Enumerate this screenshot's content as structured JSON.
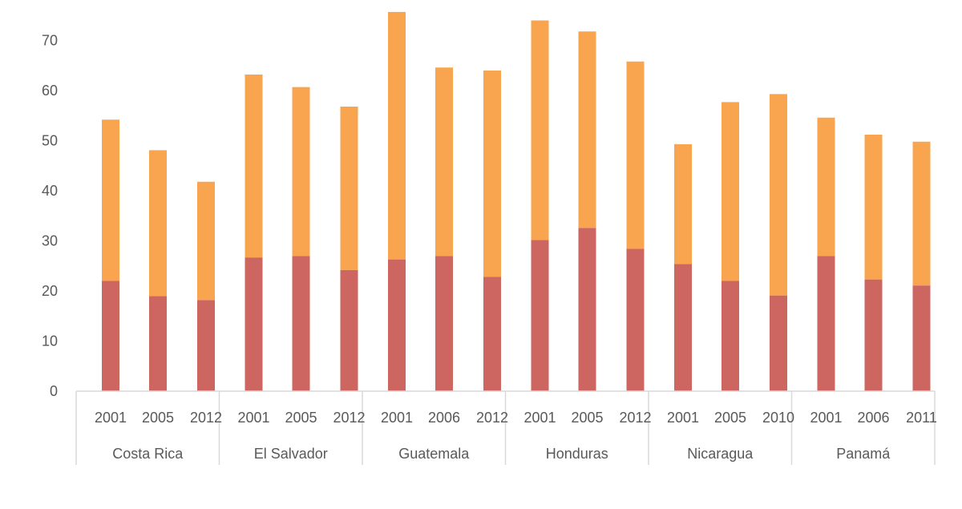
{
  "chart_data": {
    "type": "bar",
    "stacked": true,
    "ylim": [
      0,
      75
    ],
    "y_ticks": [
      0,
      10,
      20,
      30,
      40,
      50,
      60,
      70
    ],
    "grid": false,
    "groups": [
      {
        "name": "Costa Rica",
        "years": [
          "2001",
          "2005",
          "2012"
        ]
      },
      {
        "name": "El Salvador",
        "years": [
          "2001",
          "2005",
          "2012"
        ]
      },
      {
        "name": "Guatemala",
        "years": [
          "2001",
          "2006",
          "2012"
        ]
      },
      {
        "name": "Honduras",
        "years": [
          "2001",
          "2005",
          "2012"
        ]
      },
      {
        "name": "Nicaragua",
        "years": [
          "2001",
          "2005",
          "2010"
        ]
      },
      {
        "name": "Panamá",
        "years": [
          "2001",
          "2006",
          "2011"
        ]
      }
    ],
    "series": [
      {
        "color": "#cd6661",
        "values": [
          22.0,
          19.0,
          18.2,
          26.7,
          27.0,
          24.2,
          26.3,
          27.0,
          22.8,
          30.2,
          32.6,
          28.4,
          25.4,
          22.0,
          19.1,
          27.0,
          22.3,
          21.1
        ]
      },
      {
        "color": "#f9a54f",
        "values": [
          32.2,
          29.1,
          23.6,
          36.5,
          33.7,
          32.6,
          49.4,
          37.6,
          41.2,
          43.8,
          39.2,
          37.4,
          23.9,
          35.7,
          40.2,
          27.6,
          28.9,
          28.7
        ]
      }
    ]
  }
}
